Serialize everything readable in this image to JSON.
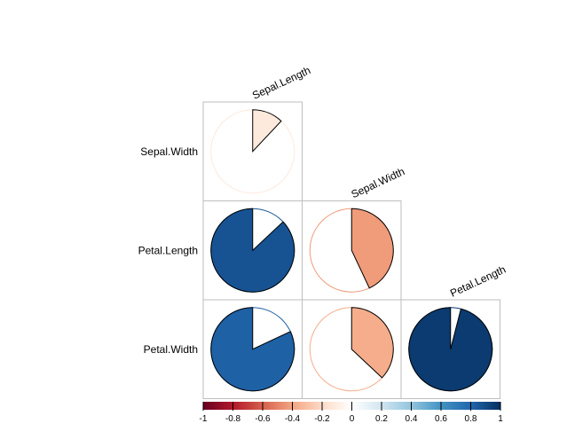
{
  "chart_data": {
    "type": "heatmap",
    "plot_style": "pie",
    "matrix_shape": "lower-triangle",
    "column_labels": [
      "Sepal.Length",
      "Sepal.Width",
      "Petal.Length"
    ],
    "row_labels": [
      "Sepal.Width",
      "Petal.Length",
      "Petal.Width"
    ],
    "cells": [
      {
        "row": "Sepal.Width",
        "col": "Sepal.Length",
        "value": -0.12
      },
      {
        "row": "Petal.Length",
        "col": "Sepal.Length",
        "value": 0.87
      },
      {
        "row": "Petal.Length",
        "col": "Sepal.Width",
        "value": -0.43
      },
      {
        "row": "Petal.Width",
        "col": "Sepal.Length",
        "value": 0.82
      },
      {
        "row": "Petal.Width",
        "col": "Sepal.Width",
        "value": -0.37
      },
      {
        "row": "Petal.Width",
        "col": "Petal.Length",
        "value": 0.96
      }
    ],
    "colorbar": {
      "range": [
        -1,
        1
      ],
      "tick_labels": [
        "-1",
        "-0.8",
        "-0.6",
        "-0.4",
        "-0.2",
        "0",
        "0.2",
        "0.4",
        "0.6",
        "0.8",
        "1"
      ],
      "colors": [
        "#67001f",
        "#b2182b",
        "#d6604d",
        "#f4a582",
        "#fddbc7",
        "#ffffff",
        "#d1e5f0",
        "#92c5de",
        "#4393c3",
        "#2166ac",
        "#053061"
      ]
    }
  }
}
